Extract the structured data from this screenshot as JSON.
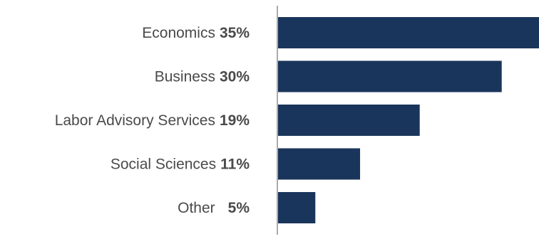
{
  "chart_data": {
    "type": "bar",
    "orientation": "horizontal",
    "categories": [
      "Economics",
      "Business",
      "Labor Advisory Services",
      "Social Sciences",
      "Other"
    ],
    "values": [
      35,
      30,
      19,
      11,
      5
    ],
    "value_labels": [
      "35%",
      "30%",
      "19%",
      "11%",
      "5%"
    ],
    "unit": "%",
    "xlim": [
      0,
      35
    ],
    "grid": false,
    "legend": "none",
    "bar_color": "#1a355b",
    "axis_color": "#555555"
  }
}
